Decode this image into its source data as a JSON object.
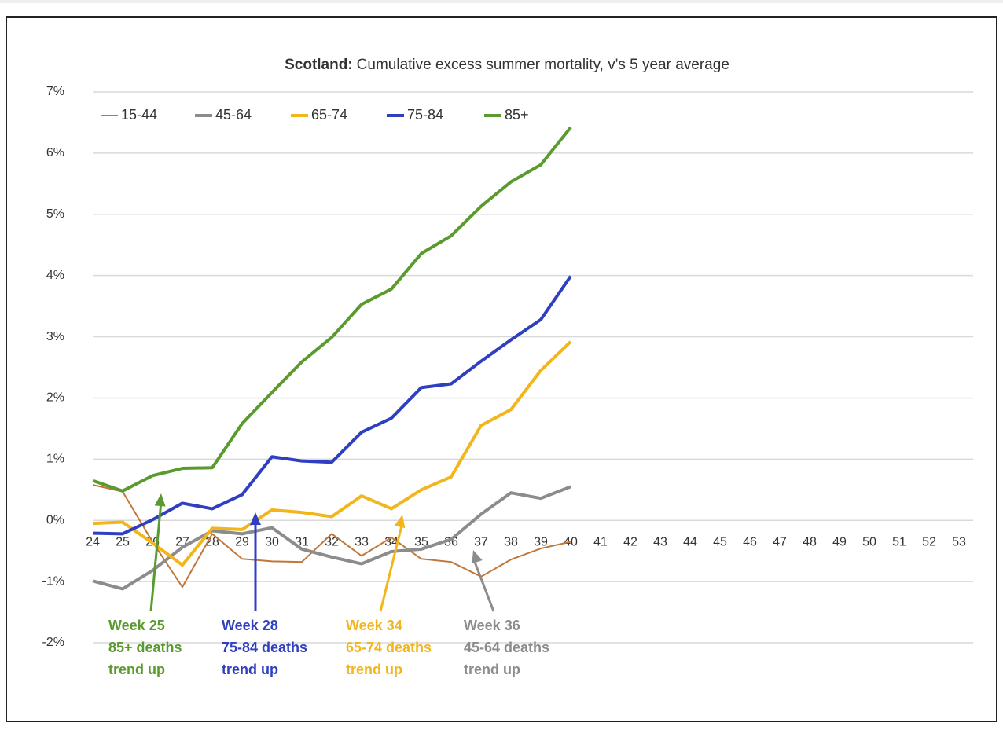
{
  "chart_data": {
    "type": "line",
    "title_bold": "Scotland:",
    "title": "Cumulative excess summer mortality, v's 5 year average",
    "categories": [
      "24",
      "25",
      "26",
      "27",
      "28",
      "29",
      "30",
      "31",
      "32",
      "33",
      "34",
      "35",
      "36",
      "37",
      "38",
      "39",
      "40",
      "41",
      "42",
      "43",
      "44",
      "45",
      "46",
      "47",
      "48",
      "49",
      "50",
      "51",
      "52",
      "53"
    ],
    "ylim": [
      -2,
      7
    ],
    "yticks": [
      {
        "value": -2,
        "label": "-2%"
      },
      {
        "value": -1,
        "label": "-1%"
      },
      {
        "value": 0,
        "label": "0%"
      },
      {
        "value": 1,
        "label": "1%"
      },
      {
        "value": 2,
        "label": "2%"
      },
      {
        "value": 3,
        "label": "3%"
      },
      {
        "value": 4,
        "label": "4%"
      },
      {
        "value": 5,
        "label": "5%"
      },
      {
        "value": 6,
        "label": "6%"
      },
      {
        "value": 7,
        "label": "7%"
      }
    ],
    "grid": true,
    "legend": "top-left",
    "series": [
      {
        "name": "15-44",
        "color": "#c0773a",
        "width": 2,
        "values": [
          0.58,
          0.47,
          -0.35,
          -1.09,
          -0.22,
          -0.63,
          -0.67,
          -0.68,
          -0.22,
          -0.58,
          -0.28,
          -0.63,
          -0.68,
          -0.92,
          -0.64,
          -0.46,
          -0.35,
          null,
          null,
          null,
          null,
          null,
          null,
          null,
          null,
          null,
          null,
          null,
          null,
          null
        ]
      },
      {
        "name": "45-64",
        "color": "#8c8c8c",
        "width": 4,
        "values": [
          -0.99,
          -1.12,
          -0.82,
          -0.44,
          -0.17,
          -0.22,
          -0.12,
          -0.47,
          -0.6,
          -0.71,
          -0.51,
          -0.47,
          -0.31,
          0.1,
          0.45,
          0.36,
          0.55,
          null,
          null,
          null,
          null,
          null,
          null,
          null,
          null,
          null,
          null,
          null,
          null,
          null
        ]
      },
      {
        "name": "65-74",
        "color": "#f2b61b",
        "width": 4,
        "values": [
          -0.05,
          -0.03,
          -0.37,
          -0.73,
          -0.13,
          -0.15,
          0.17,
          0.13,
          0.06,
          0.4,
          0.19,
          0.5,
          0.71,
          1.55,
          1.81,
          2.45,
          2.92,
          null,
          null,
          null,
          null,
          null,
          null,
          null,
          null,
          null,
          null,
          null,
          null,
          null
        ]
      },
      {
        "name": "75-84",
        "color": "#2f3fc0",
        "width": 4,
        "values": [
          -0.21,
          -0.22,
          0.01,
          0.28,
          0.19,
          0.42,
          1.04,
          0.97,
          0.95,
          1.44,
          1.67,
          2.17,
          2.23,
          2.6,
          2.95,
          3.28,
          3.99,
          null,
          null,
          null,
          null,
          null,
          null,
          null,
          null,
          null,
          null,
          null,
          null,
          null
        ]
      },
      {
        "name": "85+",
        "color": "#5a9a2e",
        "width": 4,
        "values": [
          0.65,
          0.48,
          0.73,
          0.85,
          0.86,
          1.58,
          2.09,
          2.59,
          2.99,
          3.53,
          3.78,
          4.36,
          4.65,
          5.13,
          5.53,
          5.81,
          6.42,
          null,
          null,
          null,
          null,
          null,
          null,
          null,
          null,
          null,
          null,
          null,
          null,
          null
        ]
      }
    ],
    "annotations": [
      {
        "color": "#5a9a2e",
        "lines": [
          "Week 25",
          "85+ deaths",
          "trend up"
        ]
      },
      {
        "color": "#2f3fc0",
        "lines": [
          "Week 28",
          "75-84 deaths",
          "trend up"
        ]
      },
      {
        "color": "#f2b61b",
        "lines": [
          "Week 34",
          "65-74 deaths",
          "trend up"
        ]
      },
      {
        "color": "#8c8c8c",
        "lines": [
          "Week 36",
          "45-64 deaths",
          "trend up"
        ]
      }
    ]
  }
}
